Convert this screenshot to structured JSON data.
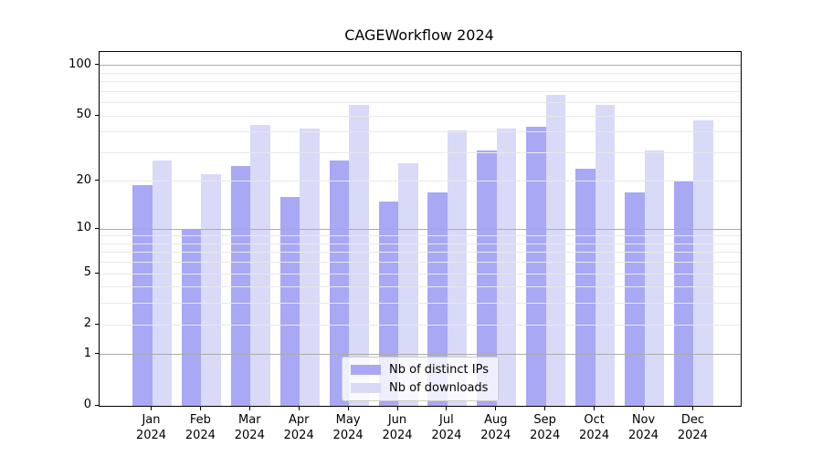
{
  "chart_data": {
    "type": "bar",
    "title": "CAGEWorkflow 2024",
    "categories": [
      "Jan",
      "Feb",
      "Mar",
      "Apr",
      "May",
      "Jun",
      "Jul",
      "Aug",
      "Sep",
      "Oct",
      "Nov",
      "Dec"
    ],
    "x_year": "2024",
    "series": [
      {
        "name": "Nb of distinct IPs",
        "color": "#a8a8f4",
        "values": [
          19,
          10,
          25,
          16,
          27,
          15,
          17,
          31,
          43,
          24,
          17,
          20
        ]
      },
      {
        "name": "Nb of downloads",
        "color": "#d9d9f8",
        "values": [
          27,
          22,
          44,
          42,
          58,
          26,
          41,
          42,
          67,
          58,
          31,
          47
        ]
      }
    ],
    "yscale": "log1p",
    "ylim": [
      0,
      120
    ],
    "ytick_labels": [
      0,
      1,
      2,
      5,
      10,
      20,
      50,
      100
    ],
    "grid": {
      "major_values": [
        1,
        10,
        100
      ],
      "minor_values": [
        2,
        3,
        4,
        5,
        6,
        7,
        8,
        9,
        20,
        30,
        40,
        50,
        60,
        70,
        80,
        90
      ],
      "major_color": "#ababab",
      "minor_color": "#e9e9e9"
    },
    "legend_position": "lower center",
    "axis_color": "#000000",
    "background_color": "#ffffff"
  }
}
